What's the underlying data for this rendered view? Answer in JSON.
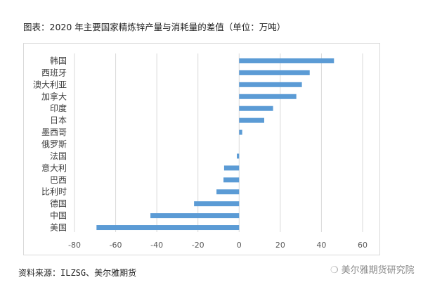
{
  "title": "图表：2020 年主要国家精炼锌产量与消耗量的差值（单位：万吨）",
  "source": "资料来源：ILZSG、美尔雅期货",
  "watermark": "美尔雅期货研究院",
  "chart_data": {
    "type": "bar",
    "orientation": "horizontal",
    "title": "图表：2020 年主要国家精炼锌产量与消耗量的差值（单位：万吨）",
    "categories": [
      "韩国",
      "西班牙",
      "澳大利亚",
      "加拿大",
      "印度",
      "日本",
      "墨西哥",
      "俄罗斯",
      "法国",
      "意大利",
      "巴西",
      "比利时",
      "德国",
      "中国",
      "美国"
    ],
    "values": [
      46.1,
      34.3,
      30.5,
      27.8,
      16.5,
      12.2,
      1.5,
      0,
      -1.1,
      -7.3,
      -7.6,
      -11,
      -21.9,
      -43.1,
      -69.3
    ],
    "xlim": [
      -80,
      60
    ],
    "xticks": [
      -80,
      -60,
      -40,
      -20,
      0,
      20,
      40,
      60
    ],
    "grid": true,
    "color": "#5b9bd5"
  }
}
